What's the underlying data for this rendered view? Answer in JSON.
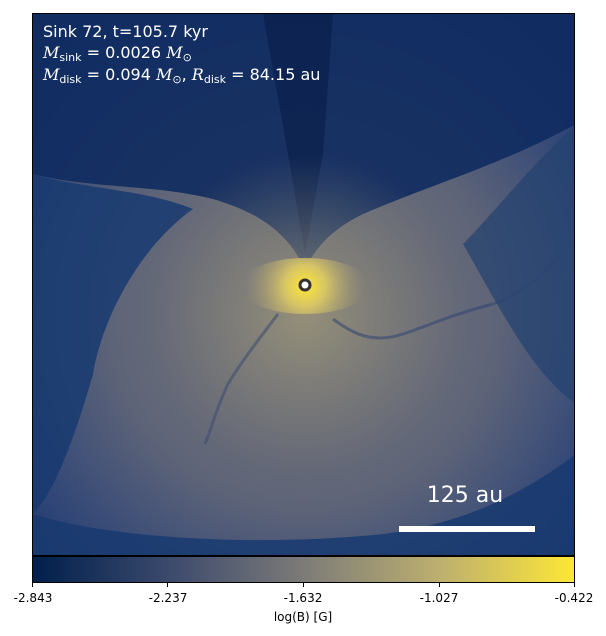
{
  "annotation": {
    "line1": "Sink 72, t=105.7 kyr",
    "sink_mass_label": "M",
    "sink_mass_sub": "sink",
    "sink_mass_value": " = 0.0026",
    "disk_mass_label": "M",
    "disk_mass_sub": "disk",
    "disk_mass_value": " = 0.094",
    "disk_radius_label": "R",
    "disk_radius_sub": "disk",
    "disk_radius_value": " = 84.15 au",
    "solar_symbol": "M",
    "solar_sub": "⊙"
  },
  "scalebar": {
    "label": "125 au"
  },
  "colorbar": {
    "label": "log(B) [G]",
    "ticks": [
      "-2.843",
      "-2.237",
      "-1.632",
      "-1.027",
      "-0.422"
    ],
    "colors": [
      "#00204c",
      "#3b496c",
      "#7c7b78",
      "#bcaf6f",
      "#fde737"
    ]
  }
}
